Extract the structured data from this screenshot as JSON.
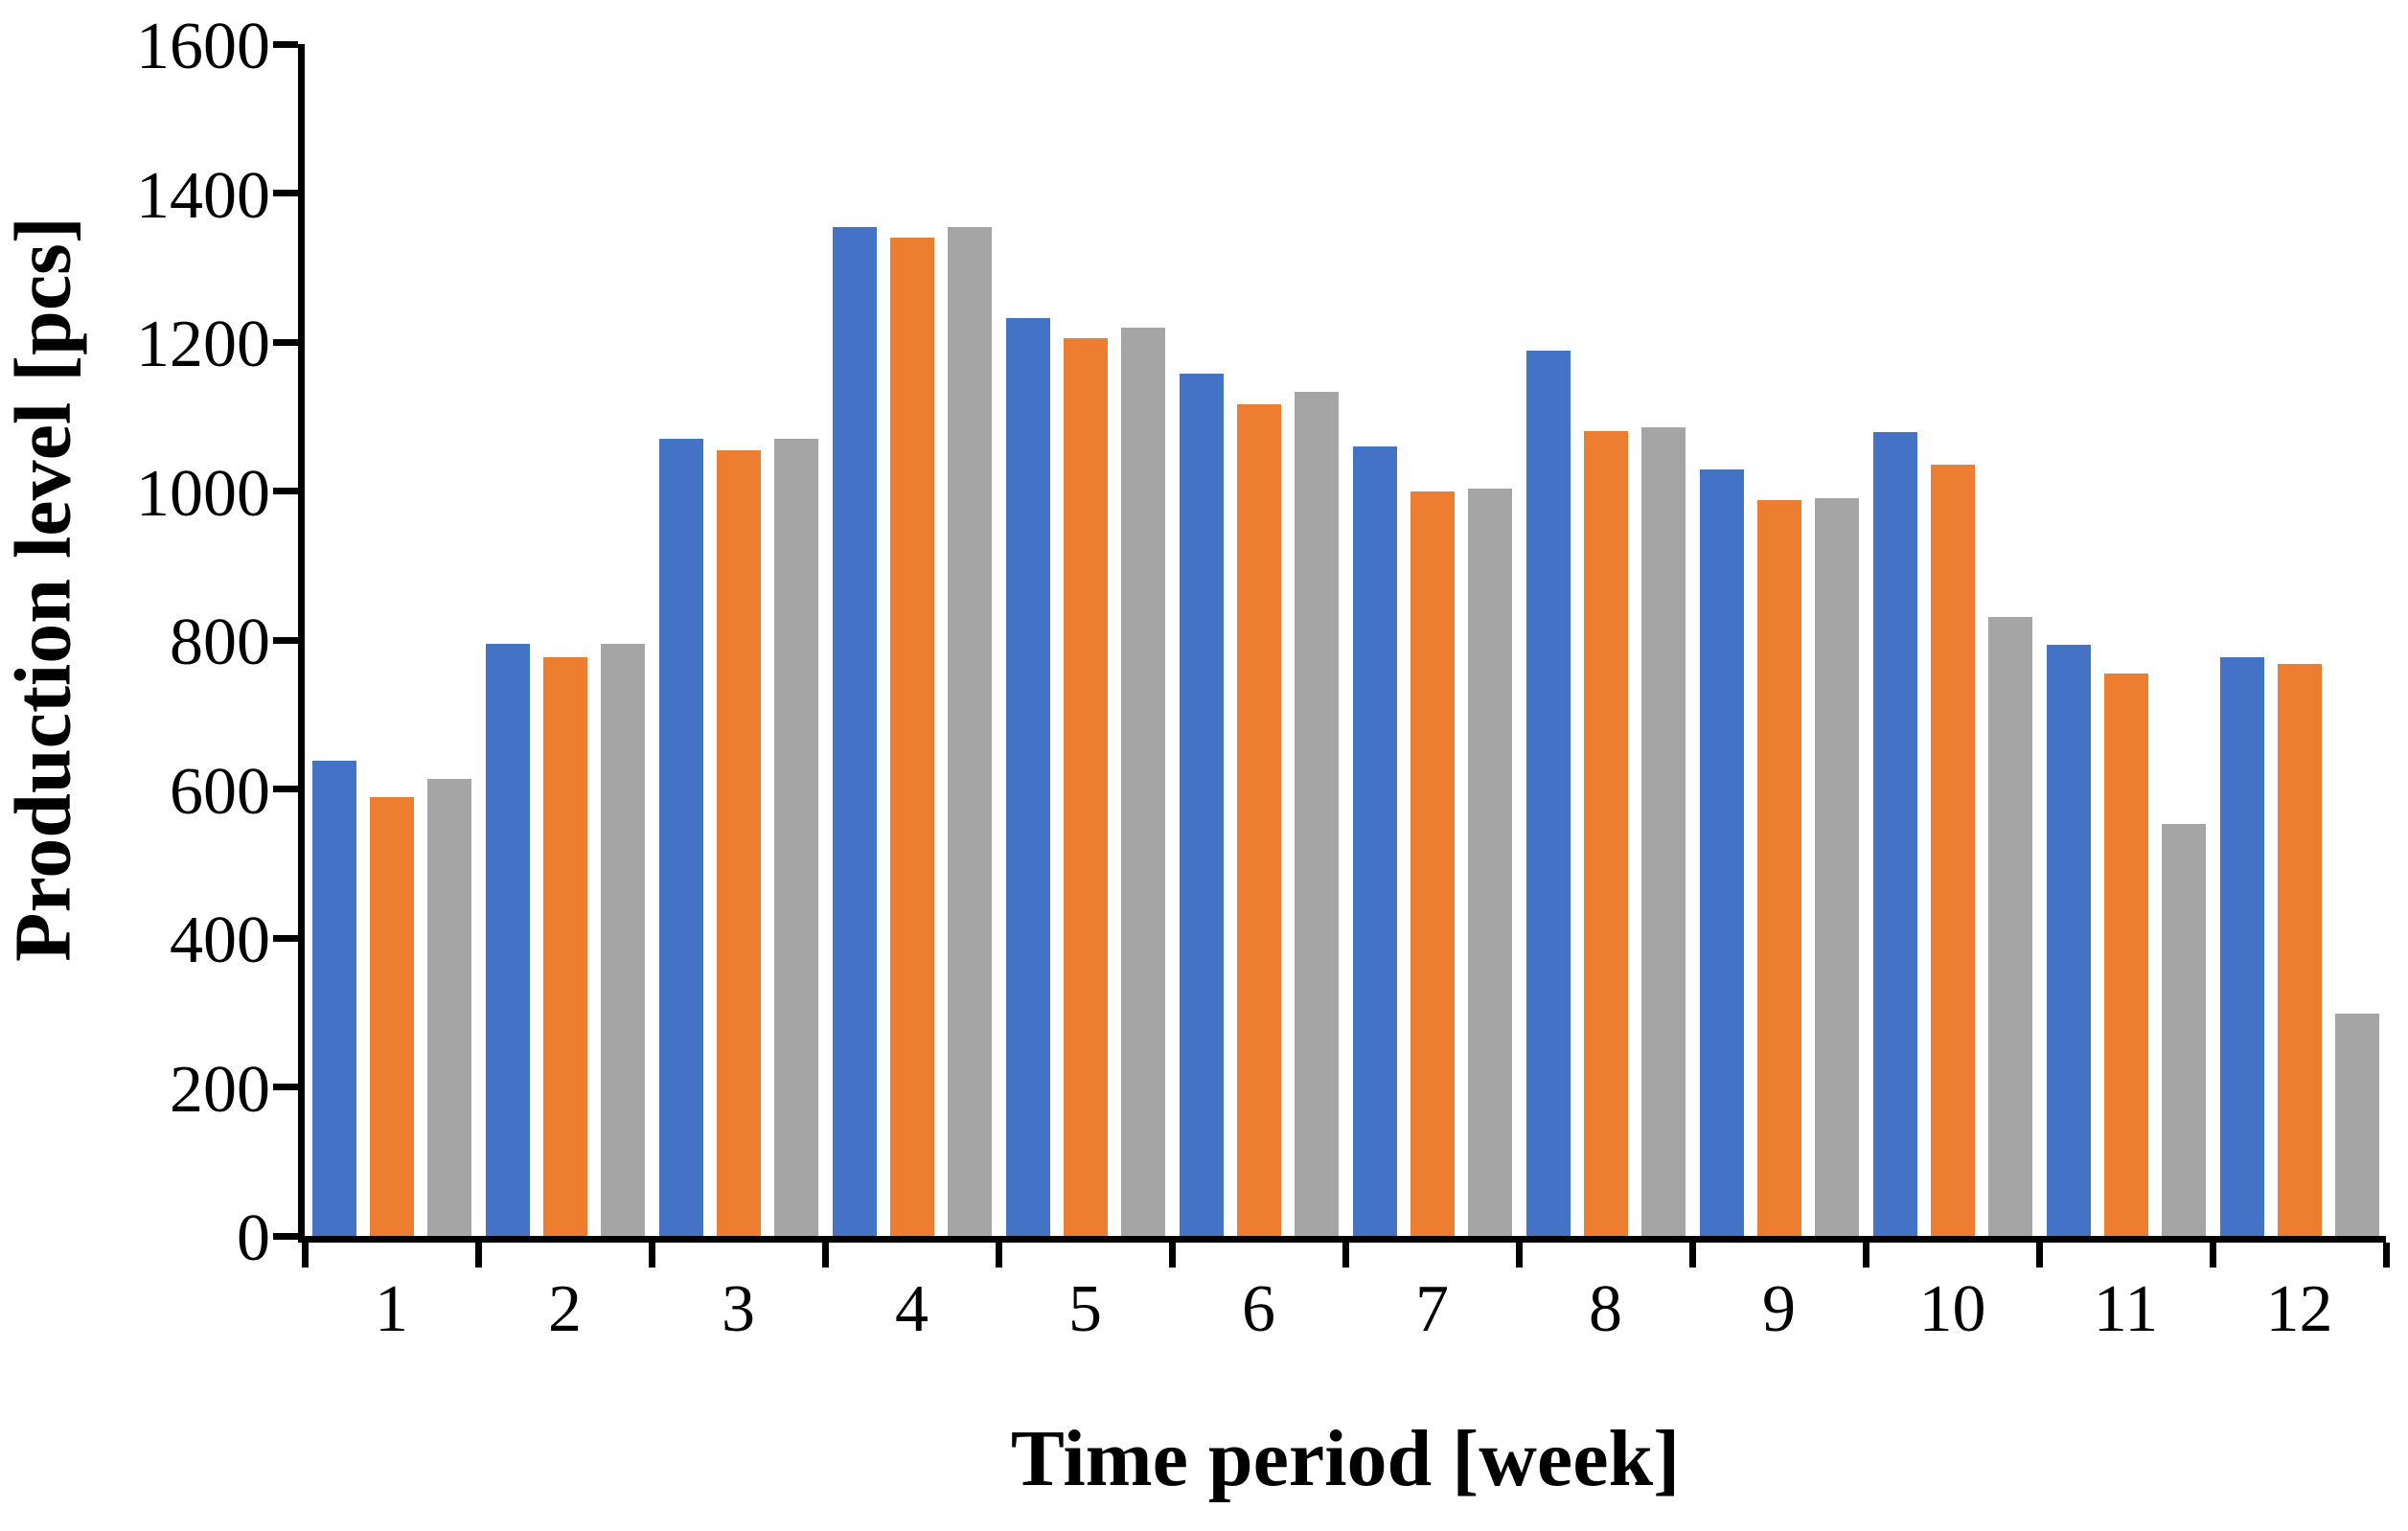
{
  "chart_data": {
    "type": "bar",
    "title": "",
    "xlabel": "Time period [week]",
    "ylabel": "Production level [pcs]",
    "categories": [
      "1",
      "2",
      "3",
      "4",
      "5",
      "6",
      "7",
      "8",
      "9",
      "10",
      "11",
      "12"
    ],
    "series": [
      {
        "name": "series-blue",
        "color": "#4472C4",
        "values": [
          638,
          795,
          1070,
          1354,
          1232,
          1158,
          1060,
          1188,
          1029,
          1079,
          793,
          777
        ]
      },
      {
        "name": "series-orange",
        "color": "#ED7D31",
        "values": [
          589,
          777,
          1055,
          1340,
          1205,
          1116,
          1000,
          1080,
          988,
          1035,
          755,
          768
        ]
      },
      {
        "name": "series-gray",
        "color": "#A5A5A5",
        "values": [
          613,
          795,
          1070,
          1354,
          1219,
          1133,
          1003,
          1085,
          991,
          831,
          553,
          298
        ]
      }
    ],
    "ylim": [
      0,
      1600
    ],
    "ytick_step": 200,
    "ytick_labels": [
      "0",
      "200",
      "400",
      "600",
      "800",
      "1000",
      "1200",
      "1400",
      "1600"
    ],
    "grid": false,
    "legend": "none",
    "axis_color": "#000000"
  }
}
